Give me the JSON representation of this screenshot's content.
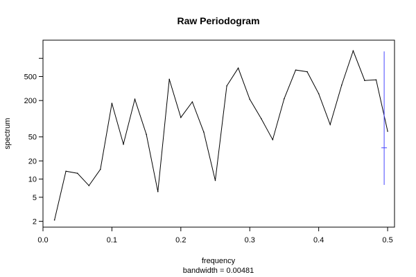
{
  "chart_data": {
    "type": "line",
    "title": "Raw Periodogram",
    "xlabel": "frequency",
    "sublabel": "bandwidth = 0.00481",
    "ylabel": "spectrum",
    "y_scale": "log",
    "xlim": [
      0.0,
      0.51
    ],
    "ylim": [
      1.6,
      2000
    ],
    "grid": false,
    "x_ticks": [
      {
        "value": 0.0,
        "label": "0.0"
      },
      {
        "value": 0.1,
        "label": "0.1"
      },
      {
        "value": 0.2,
        "label": "0.2"
      },
      {
        "value": 0.3,
        "label": "0.3"
      },
      {
        "value": 0.4,
        "label": "0.4"
      },
      {
        "value": 0.5,
        "label": "0.5"
      }
    ],
    "y_ticks": [
      {
        "value": 2,
        "label": "2"
      },
      {
        "value": 5,
        "label": "5"
      },
      {
        "value": 10,
        "label": "10"
      },
      {
        "value": 20,
        "label": "20"
      },
      {
        "value": 50,
        "label": "50"
      },
      {
        "value": 200,
        "label": "200"
      },
      {
        "value": 500,
        "label": "500"
      },
      {
        "value": 1000,
        "label": ""
      }
    ],
    "series": [
      {
        "color": "#000000",
        "x": [
          0.0167,
          0.0333,
          0.05,
          0.0667,
          0.0833,
          0.1,
          0.1167,
          0.1333,
          0.15,
          0.1667,
          0.1833,
          0.2,
          0.2167,
          0.2333,
          0.25,
          0.2667,
          0.2833,
          0.3,
          0.3167,
          0.3333,
          0.35,
          0.3667,
          0.3833,
          0.4,
          0.4167,
          0.4333,
          0.45,
          0.4667,
          0.4833,
          0.5
        ],
        "y": [
          2.1,
          13.5,
          12.5,
          7.8,
          14.5,
          180,
          38,
          210,
          55,
          6.2,
          450,
          105,
          190,
          60,
          9.5,
          350,
          690,
          210,
          100,
          45,
          215,
          640,
          600,
          260,
          80,
          360,
          1330,
          430,
          440,
          62
        ]
      }
    ],
    "confidence_bar": {
      "color": "#4444ff",
      "x": 0.495,
      "y_low": 8,
      "y_center": 33,
      "y_high": 1300
    }
  }
}
